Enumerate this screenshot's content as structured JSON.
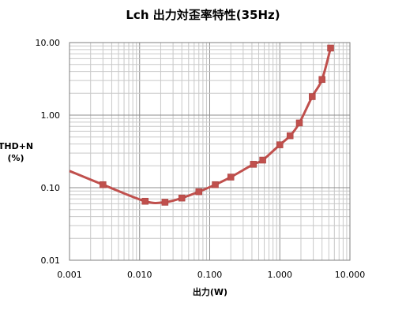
{
  "chart_data": {
    "type": "line",
    "title": "Lch 出力対歪率特性(35Hz)",
    "xlabel": "出力(W)",
    "ylabel": [
      "THD+N",
      "(%)"
    ],
    "x_scale": "log",
    "y_scale": "log",
    "xlim": [
      0.001,
      10
    ],
    "ylim": [
      0.01,
      10
    ],
    "x_ticks": [
      0.001,
      0.01,
      0.1,
      1,
      10
    ],
    "x_tick_labels": [
      "0.001",
      "0.010",
      "0.100",
      "1.000",
      "10.000"
    ],
    "y_ticks": [
      0.01,
      0.1,
      1,
      10
    ],
    "y_tick_labels": [
      "0.01",
      "0.10",
      "1.00",
      "10.00"
    ],
    "grid": true,
    "legend": "none",
    "series": [
      {
        "color": "#c0504d",
        "marker_color": "#c0504d",
        "x": [
          0.003,
          0.012,
          0.023,
          0.04,
          0.07,
          0.12,
          0.2,
          0.42,
          0.57,
          1.0,
          1.4,
          1.9,
          2.9,
          4.0,
          5.3
        ],
        "y": [
          0.11,
          0.065,
          0.063,
          0.072,
          0.088,
          0.11,
          0.14,
          0.21,
          0.24,
          0.39,
          0.52,
          0.78,
          1.8,
          3.1,
          8.4
        ]
      }
    ],
    "curve_start": {
      "x": 0.001,
      "y": 0.17
    }
  }
}
